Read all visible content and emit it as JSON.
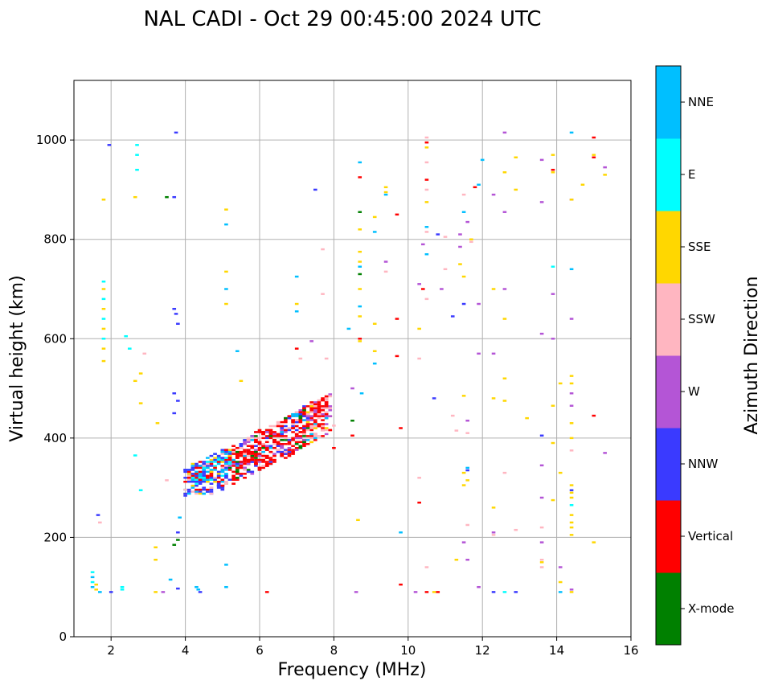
{
  "chart_data": {
    "type": "scatter",
    "title": "NAL CADI - Oct 29 00:45:00 2024 UTC",
    "xlabel": "Frequency (MHz)",
    "ylabel": "Virtual height (km)",
    "xlim": [
      1,
      16
    ],
    "ylim": [
      0,
      1120
    ],
    "xticks": [
      2,
      4,
      6,
      8,
      10,
      12,
      14,
      16
    ],
    "yticks": [
      0,
      200,
      400,
      600,
      800,
      1000
    ],
    "grid": true,
    "colorbar": {
      "label": "Azimuth Direction",
      "categories": [
        {
          "name": "X-mode",
          "color": "#008000"
        },
        {
          "name": "Vertical",
          "color": "#ff0000"
        },
        {
          "name": "NNW",
          "color": "#3a3aff"
        },
        {
          "name": "W",
          "color": "#b455d6"
        },
        {
          "name": "SSW",
          "color": "#ffb6c1"
        },
        {
          "name": "SSE",
          "color": "#ffd700"
        },
        {
          "name": "E",
          "color": "#00ffff"
        },
        {
          "name": "NNE",
          "color": "#00bfff"
        }
      ]
    },
    "pixel_size": {
      "df": 0.1,
      "dh": 4
    },
    "points": [
      [
        1.5,
        100,
        "NNE"
      ],
      [
        1.5,
        110,
        "E"
      ],
      [
        1.5,
        120,
        "NNE"
      ],
      [
        1.5,
        130,
        "E"
      ],
      [
        1.6,
        105,
        "SSE"
      ],
      [
        1.6,
        95,
        "SSE"
      ],
      [
        1.7,
        90,
        "NNE"
      ],
      [
        1.65,
        245,
        "NNW"
      ],
      [
        1.7,
        230,
        "SSW"
      ],
      [
        1.8,
        555,
        "SSE"
      ],
      [
        1.8,
        580,
        "SSE"
      ],
      [
        1.8,
        600,
        "E"
      ],
      [
        1.8,
        620,
        "SSE"
      ],
      [
        1.8,
        640,
        "E"
      ],
      [
        1.8,
        660,
        "SSE"
      ],
      [
        1.8,
        680,
        "E"
      ],
      [
        1.8,
        700,
        "SSE"
      ],
      [
        1.8,
        715,
        "E"
      ],
      [
        1.8,
        880,
        "SSE"
      ],
      [
        1.95,
        990,
        "NNW"
      ],
      [
        2.0,
        90,
        "NNW"
      ],
      [
        2.3,
        95,
        "E"
      ],
      [
        2.3,
        100,
        "E"
      ],
      [
        2.4,
        605,
        "E"
      ],
      [
        2.5,
        580,
        "E"
      ],
      [
        2.65,
        885,
        "SSE"
      ],
      [
        2.7,
        940,
        "E"
      ],
      [
        2.7,
        970,
        "E"
      ],
      [
        2.7,
        990,
        "E"
      ],
      [
        2.65,
        365,
        "E"
      ],
      [
        2.65,
        515,
        "SSE"
      ],
      [
        2.8,
        295,
        "E"
      ],
      [
        2.8,
        470,
        "SSE"
      ],
      [
        2.8,
        530,
        "SSE"
      ],
      [
        2.9,
        570,
        "SSW"
      ],
      [
        3.2,
        90,
        "SSE"
      ],
      [
        3.2,
        155,
        "SSE"
      ],
      [
        3.2,
        180,
        "SSE"
      ],
      [
        3.25,
        430,
        "SSE"
      ],
      [
        3.4,
        90,
        "W"
      ],
      [
        3.5,
        885,
        "X-mode"
      ],
      [
        3.5,
        315,
        "SSW"
      ],
      [
        3.6,
        115,
        "NNE"
      ],
      [
        3.7,
        885,
        "NNW"
      ],
      [
        3.7,
        490,
        "NNW"
      ],
      [
        3.7,
        450,
        "NNW"
      ],
      [
        3.7,
        660,
        "NNW"
      ],
      [
        3.75,
        650,
        "NNW"
      ],
      [
        3.8,
        630,
        "NNW"
      ],
      [
        3.75,
        1015,
        "NNW"
      ],
      [
        3.7,
        185,
        "X-mode"
      ],
      [
        3.8,
        195,
        "X-mode"
      ],
      [
        3.8,
        210,
        "NNW"
      ],
      [
        3.85,
        240,
        "NNE"
      ],
      [
        3.8,
        97,
        "NNW"
      ],
      [
        3.8,
        475,
        "NNW"
      ],
      [
        4.3,
        100,
        "NNE"
      ],
      [
        4.35,
        95,
        "NNE"
      ],
      [
        4.4,
        90,
        "NNW"
      ],
      [
        5.1,
        100,
        "NNE"
      ],
      [
        5.1,
        145,
        "NNE"
      ],
      [
        5.1,
        700,
        "NNE"
      ],
      [
        5.1,
        735,
        "SSE"
      ],
      [
        5.1,
        670,
        "SSE"
      ],
      [
        5.1,
        830,
        "NNE"
      ],
      [
        5.1,
        860,
        "SSE"
      ],
      [
        5.4,
        575,
        "NNE"
      ],
      [
        5.5,
        515,
        "SSE"
      ],
      [
        6.2,
        90,
        "Vertical"
      ],
      [
        7.0,
        725,
        "NNE"
      ],
      [
        7.0,
        670,
        "SSE"
      ],
      [
        7.0,
        655,
        "NNE"
      ],
      [
        7.0,
        580,
        "Vertical"
      ],
      [
        7.1,
        560,
        "SSW"
      ],
      [
        7.4,
        595,
        "W"
      ],
      [
        7.5,
        900,
        "NNW"
      ],
      [
        7.7,
        780,
        "SSW"
      ],
      [
        7.7,
        690,
        "SSW"
      ],
      [
        7.8,
        560,
        "SSW"
      ],
      [
        8.0,
        380,
        "Vertical"
      ],
      [
        8.0,
        425,
        "SSW"
      ],
      [
        8.4,
        620,
        "NNE"
      ],
      [
        8.5,
        500,
        "W"
      ],
      [
        8.5,
        435,
        "X-mode"
      ],
      [
        8.5,
        405,
        "Vertical"
      ],
      [
        8.6,
        90,
        "W"
      ],
      [
        8.65,
        235,
        "SSE"
      ],
      [
        8.7,
        955,
        "NNE"
      ],
      [
        8.7,
        925,
        "Vertical"
      ],
      [
        8.7,
        855,
        "X-mode"
      ],
      [
        8.7,
        820,
        "SSE"
      ],
      [
        8.7,
        775,
        "SSE"
      ],
      [
        8.7,
        755,
        "SSE"
      ],
      [
        8.7,
        745,
        "NNE"
      ],
      [
        8.7,
        730,
        "X-mode"
      ],
      [
        8.7,
        700,
        "SSE"
      ],
      [
        8.7,
        665,
        "NNE"
      ],
      [
        8.7,
        645,
        "SSE"
      ],
      [
        8.7,
        600,
        "Vertical"
      ],
      [
        8.7,
        595,
        "SSE"
      ],
      [
        8.75,
        490,
        "NNE"
      ],
      [
        9.1,
        845,
        "SSE"
      ],
      [
        9.1,
        815,
        "NNE"
      ],
      [
        9.1,
        630,
        "SSE"
      ],
      [
        9.1,
        575,
        "SSE"
      ],
      [
        9.1,
        550,
        "NNE"
      ],
      [
        9.4,
        905,
        "SSE"
      ],
      [
        9.4,
        895,
        "SSE"
      ],
      [
        9.4,
        890,
        "NNE"
      ],
      [
        9.4,
        755,
        "W"
      ],
      [
        9.4,
        735,
        "SSW"
      ],
      [
        9.7,
        850,
        "Vertical"
      ],
      [
        9.7,
        640,
        "Vertical"
      ],
      [
        9.7,
        565,
        "Vertical"
      ],
      [
        9.8,
        420,
        "Vertical"
      ],
      [
        9.8,
        210,
        "NNE"
      ],
      [
        9.8,
        105,
        "Vertical"
      ],
      [
        10.2,
        90,
        "W"
      ],
      [
        10.3,
        710,
        "W"
      ],
      [
        10.4,
        700,
        "Vertical"
      ],
      [
        10.3,
        620,
        "SSE"
      ],
      [
        10.3,
        560,
        "SSW"
      ],
      [
        10.3,
        320,
        "SSW"
      ],
      [
        10.3,
        270,
        "Vertical"
      ],
      [
        10.4,
        790,
        "W"
      ],
      [
        10.5,
        90,
        "Vertical"
      ],
      [
        10.5,
        140,
        "SSW"
      ],
      [
        10.5,
        1005,
        "SSW"
      ],
      [
        10.5,
        995,
        "Vertical"
      ],
      [
        10.5,
        985,
        "SSE"
      ],
      [
        10.5,
        955,
        "SSW"
      ],
      [
        10.5,
        920,
        "Vertical"
      ],
      [
        10.5,
        900,
        "SSW"
      ],
      [
        10.5,
        875,
        "SSE"
      ],
      [
        10.5,
        825,
        "NNE"
      ],
      [
        10.5,
        680,
        "SSW"
      ],
      [
        10.5,
        815,
        "SSW"
      ],
      [
        10.5,
        770,
        "NNE"
      ],
      [
        10.7,
        480,
        "NNW"
      ],
      [
        10.7,
        90,
        "SSE"
      ],
      [
        10.8,
        90,
        "Vertical"
      ],
      [
        10.8,
        810,
        "NNW"
      ],
      [
        10.9,
        700,
        "W"
      ],
      [
        11.0,
        805,
        "SSW"
      ],
      [
        11.0,
        740,
        "SSW"
      ],
      [
        11.2,
        445,
        "SSW"
      ],
      [
        11.2,
        645,
        "NNW"
      ],
      [
        11.3,
        155,
        "SSE"
      ],
      [
        11.3,
        415,
        "SSW"
      ],
      [
        11.4,
        810,
        "W"
      ],
      [
        11.4,
        785,
        "W"
      ],
      [
        11.4,
        750,
        "SSE"
      ],
      [
        11.5,
        890,
        "SSW"
      ],
      [
        11.5,
        855,
        "NNE"
      ],
      [
        11.5,
        725,
        "SSE"
      ],
      [
        11.5,
        670,
        "NNW"
      ],
      [
        11.5,
        485,
        "SSE"
      ],
      [
        11.5,
        330,
        "SSE"
      ],
      [
        11.5,
        305,
        "SSE"
      ],
      [
        11.5,
        190,
        "W"
      ],
      [
        11.6,
        835,
        "W"
      ],
      [
        11.6,
        435,
        "W"
      ],
      [
        11.6,
        410,
        "SSW"
      ],
      [
        11.6,
        340,
        "NNE"
      ],
      [
        11.6,
        335,
        "NNW"
      ],
      [
        11.6,
        315,
        "SSE"
      ],
      [
        11.6,
        225,
        "SSW"
      ],
      [
        11.6,
        155,
        "W"
      ],
      [
        11.7,
        800,
        "SSE"
      ],
      [
        11.7,
        795,
        "SSW"
      ],
      [
        11.8,
        905,
        "Vertical"
      ],
      [
        11.9,
        910,
        "NNE"
      ],
      [
        12.0,
        960,
        "NNE"
      ],
      [
        11.9,
        670,
        "W"
      ],
      [
        11.9,
        570,
        "W"
      ],
      [
        11.9,
        100,
        "W"
      ],
      [
        12.3,
        890,
        "W"
      ],
      [
        12.3,
        700,
        "SSE"
      ],
      [
        12.3,
        570,
        "W"
      ],
      [
        12.3,
        480,
        "SSE"
      ],
      [
        12.3,
        260,
        "SSE"
      ],
      [
        12.3,
        210,
        "W"
      ],
      [
        12.3,
        205,
        "SSW"
      ],
      [
        12.3,
        90,
        "NNW"
      ],
      [
        12.6,
        1015,
        "W"
      ],
      [
        12.6,
        935,
        "SSE"
      ],
      [
        12.6,
        855,
        "W"
      ],
      [
        12.6,
        700,
        "W"
      ],
      [
        12.6,
        640,
        "SSE"
      ],
      [
        12.6,
        520,
        "SSE"
      ],
      [
        12.6,
        475,
        "SSE"
      ],
      [
        12.6,
        330,
        "SSW"
      ],
      [
        12.6,
        90,
        "E"
      ],
      [
        12.9,
        965,
        "SSE"
      ],
      [
        12.9,
        900,
        "SSE"
      ],
      [
        12.9,
        215,
        "SSW"
      ],
      [
        12.9,
        90,
        "NNW"
      ],
      [
        13.2,
        440,
        "SSE"
      ],
      [
        13.6,
        960,
        "W"
      ],
      [
        13.6,
        875,
        "W"
      ],
      [
        13.6,
        610,
        "W"
      ],
      [
        13.6,
        345,
        "W"
      ],
      [
        13.6,
        280,
        "W"
      ],
      [
        13.6,
        190,
        "W"
      ],
      [
        13.6,
        150,
        "SSE"
      ],
      [
        13.6,
        155,
        "SSW"
      ],
      [
        13.6,
        220,
        "SSW"
      ],
      [
        13.6,
        140,
        "SSW"
      ],
      [
        13.6,
        405,
        "NNW"
      ],
      [
        13.9,
        970,
        "SSE"
      ],
      [
        13.9,
        940,
        "Vertical"
      ],
      [
        13.9,
        935,
        "SSE"
      ],
      [
        13.9,
        745,
        "E"
      ],
      [
        13.9,
        690,
        "W"
      ],
      [
        13.9,
        600,
        "W"
      ],
      [
        13.9,
        465,
        "SSE"
      ],
      [
        13.9,
        390,
        "SSE"
      ],
      [
        13.9,
        275,
        "SSE"
      ],
      [
        14.1,
        510,
        "SSE"
      ],
      [
        14.1,
        330,
        "SSE"
      ],
      [
        14.1,
        110,
        "SSE"
      ],
      [
        14.1,
        140,
        "W"
      ],
      [
        14.1,
        90,
        "NNE"
      ],
      [
        14.4,
        1015,
        "NNE"
      ],
      [
        14.4,
        880,
        "W"
      ],
      [
        14.4,
        880,
        "SSE"
      ],
      [
        14.4,
        740,
        "NNE"
      ],
      [
        14.4,
        640,
        "W"
      ],
      [
        14.4,
        525,
        "SSE"
      ],
      [
        14.4,
        510,
        "SSE"
      ],
      [
        14.4,
        490,
        "W"
      ],
      [
        14.4,
        465,
        "W"
      ],
      [
        14.4,
        430,
        "SSE"
      ],
      [
        14.4,
        400,
        "SSE"
      ],
      [
        14.4,
        375,
        "SSW"
      ],
      [
        14.4,
        305,
        "SSE"
      ],
      [
        14.4,
        295,
        "NNW"
      ],
      [
        14.4,
        290,
        "SSE"
      ],
      [
        14.4,
        280,
        "SSE"
      ],
      [
        14.4,
        265,
        "E"
      ],
      [
        14.4,
        245,
        "SSE"
      ],
      [
        14.4,
        230,
        "SSE"
      ],
      [
        14.4,
        220,
        "SSE"
      ],
      [
        14.4,
        205,
        "SSE"
      ],
      [
        14.4,
        95,
        "W"
      ],
      [
        14.4,
        90,
        "SSE"
      ],
      [
        14.7,
        910,
        "SSE"
      ],
      [
        15.0,
        1005,
        "Vertical"
      ],
      [
        15.0,
        970,
        "SSE"
      ],
      [
        15.0,
        965,
        "Vertical"
      ],
      [
        15.0,
        445,
        "Vertical"
      ],
      [
        15.0,
        190,
        "SSE"
      ],
      [
        15.3,
        945,
        "W"
      ],
      [
        15.3,
        930,
        "SSE"
      ],
      [
        15.3,
        370,
        "W"
      ]
    ],
    "clusters": [
      {
        "fmin": 4.0,
        "fmax": 7.9,
        "hmin": 285,
        "hmax": 500
      }
    ]
  }
}
